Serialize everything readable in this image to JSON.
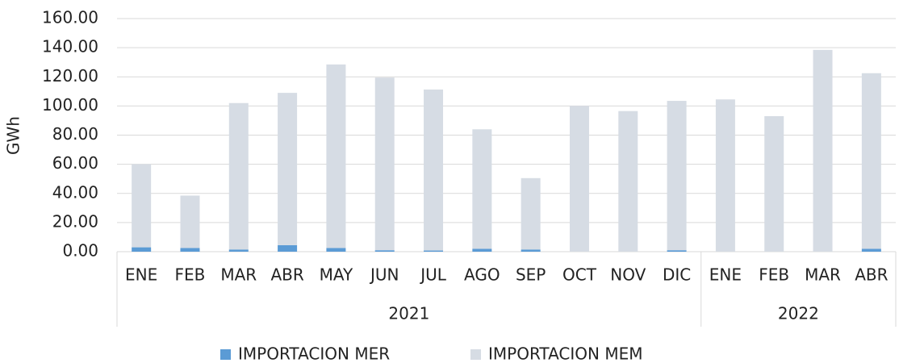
{
  "chart_data": {
    "type": "stacked_bar",
    "y_label": "GWh",
    "category_groups": [
      {
        "name": "2021",
        "categories": [
          "ENE",
          "FEB",
          "MAR",
          "ABR",
          "MAY",
          "JUN",
          "JUL",
          "AGO",
          "SEP",
          "OCT",
          "NOV",
          "DIC"
        ]
      },
      {
        "name": "2022",
        "categories": [
          "ENE",
          "FEB",
          "MAR",
          "ABR"
        ]
      }
    ],
    "series": [
      {
        "name": "IMPORTACION MER",
        "color": "#5b9bd5",
        "values": [
          3,
          2.5,
          1.5,
          4.5,
          2.5,
          1,
          0.8,
          2,
          1.5,
          0,
          0,
          1,
          0,
          0,
          0,
          2
        ]
      },
      {
        "name": "IMPORTACION MEM",
        "color": "#d6dce4",
        "values": [
          57,
          36,
          100.5,
          104.5,
          126,
          118.5,
          110.5,
          82,
          49,
          100,
          96.5,
          102.5,
          104.5,
          93,
          138.5,
          120.5
        ]
      }
    ],
    "ylim": [
      0,
      160
    ],
    "yticks": [
      {
        "value": 0,
        "label": "0.00"
      },
      {
        "value": 20,
        "label": "20.00"
      },
      {
        "value": 40,
        "label": "40.00"
      },
      {
        "value": 60,
        "label": "60.00"
      },
      {
        "value": 80,
        "label": "80.00"
      },
      {
        "value": 100,
        "label": "100.00"
      },
      {
        "value": 120,
        "label": "120.00"
      },
      {
        "value": 140,
        "label": "140.00"
      },
      {
        "value": 160,
        "label": "160.00"
      }
    ],
    "grid": true,
    "legend": "bottom"
  }
}
